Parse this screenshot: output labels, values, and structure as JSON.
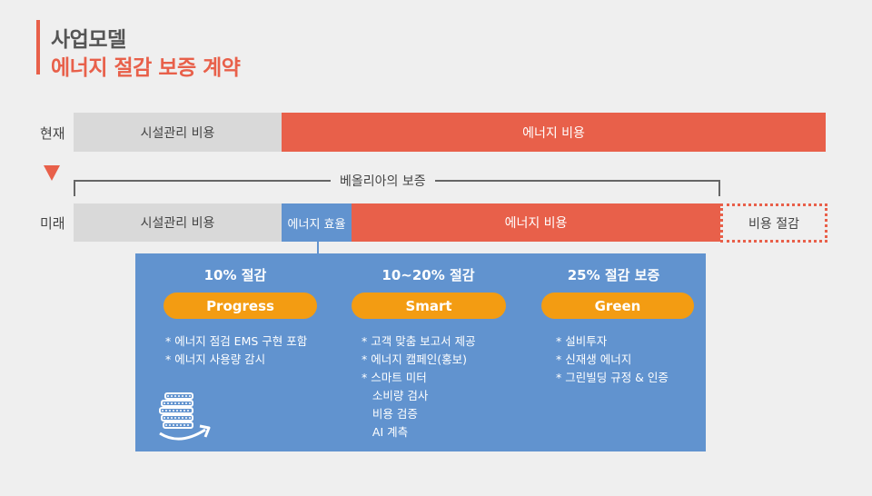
{
  "header": {
    "title_line1": "사업모델",
    "title_line2": "에너지 절감 보증 계약"
  },
  "current": {
    "label": "현재",
    "facility_cost": "시설관리 비용",
    "energy_cost": "에너지 비용"
  },
  "guarantee_label": "베올리아의 보증",
  "future": {
    "label": "미래",
    "facility_cost": "시설관리 비용",
    "energy_efficiency": "에너지 효율",
    "energy_cost": "에너지 비용",
    "cost_saving": "비용 절감"
  },
  "tiers": [
    {
      "heading": "10% 절감",
      "name": "Progress",
      "items": [
        "* 에너지 점검 EMS 구현 포함",
        "* 에너지 사용량 감시"
      ]
    },
    {
      "heading": "10~20% 절감",
      "name": "Smart",
      "items": [
        "* 고객 맞춤 보고서 제공",
        "* 에너지 캠페인(홍보)",
        "* 스마트 미터",
        "   소비량 검사",
        "   비용 검증",
        "   AI 계측"
      ]
    },
    {
      "heading": "25% 절감 보증",
      "name": "Green",
      "items": [
        "* 설비투자",
        "* 신재생 에너지",
        "* 그린빌딩 규정 & 인증"
      ]
    }
  ],
  "colors": {
    "accent": "#e8604a",
    "panel_blue": "#6193cf",
    "pill_orange": "#f39c12",
    "gray_bar": "#d9d9d9"
  },
  "icons": [
    "money-stack-icon",
    "arrow-down-icon"
  ]
}
